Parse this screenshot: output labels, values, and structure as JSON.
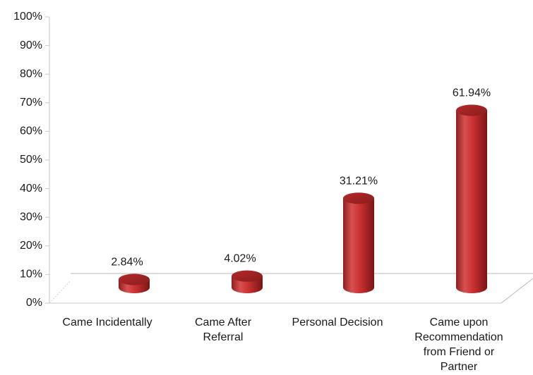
{
  "chart_data": {
    "type": "bar",
    "style": "3d-cylinder",
    "categories": [
      "Came Incidentally",
      "Came After Referral",
      "Personal Decision",
      "Came upon Recommendation from Friend or Partner"
    ],
    "category_lines": [
      [
        "Came Incidentally"
      ],
      [
        "Came After",
        "Referral"
      ],
      [
        "Personal Decision"
      ],
      [
        "Came upon",
        "Recommendation",
        "from Friend or",
        "Partner"
      ]
    ],
    "values": [
      2.84,
      4.02,
      31.21,
      61.94
    ],
    "data_labels": [
      "2.84%",
      "4.02%",
      "31.21%",
      "61.94%"
    ],
    "yticks": [
      "0%",
      "10%",
      "20%",
      "30%",
      "40%",
      "50%",
      "60%",
      "70%",
      "80%",
      "90%",
      "100%"
    ],
    "ylim": [
      0,
      100
    ],
    "grid": false,
    "legend": "none",
    "bar_color": "#cc3333"
  }
}
